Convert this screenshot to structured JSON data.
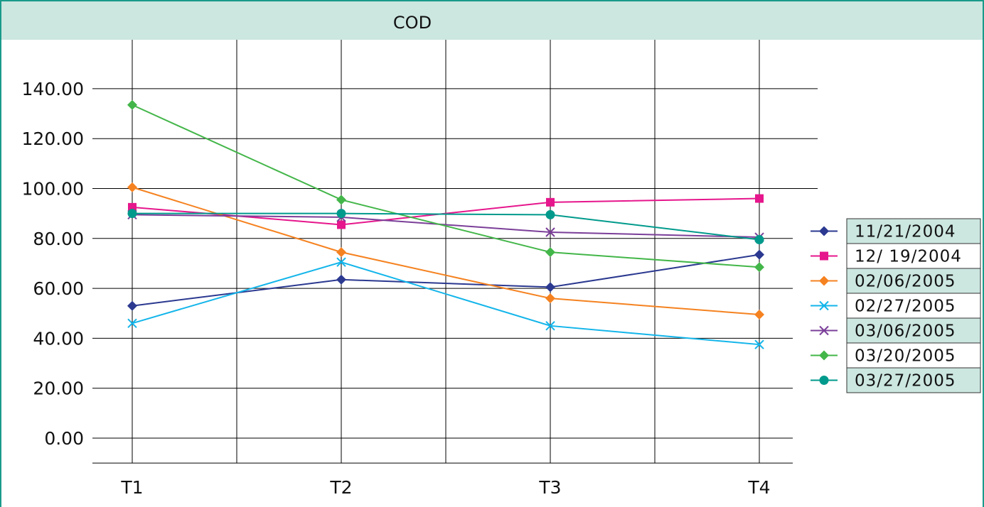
{
  "chart_data": {
    "type": "line",
    "title": "COD",
    "xlabel": "",
    "ylabel": "",
    "categories": [
      "T1",
      "T2",
      "T3",
      "T4"
    ],
    "ylim": [
      -10,
      160
    ],
    "y_ticks": [
      "0.00",
      "20.00",
      "40.00",
      "60.00",
      "80.00",
      "100.00",
      "120.00",
      "140.00"
    ],
    "grid": true,
    "legend_position": "right",
    "series": [
      {
        "name": "11/21/2004",
        "values": [
          53.0,
          63.5,
          60.5,
          73.5
        ],
        "color": "#2b3990",
        "marker": "diamond"
      },
      {
        "name": "12/ 19/2004",
        "values": [
          92.5,
          85.5,
          94.5,
          96.0
        ],
        "color": "#e6168c",
        "marker": "square"
      },
      {
        "name": "02/06/2005",
        "values": [
          100.5,
          74.5,
          56.0,
          49.5
        ],
        "color": "#f58220",
        "marker": "diamond"
      },
      {
        "name": "02/27/2005",
        "values": [
          46.0,
          70.5,
          45.0,
          37.5
        ],
        "color": "#13b5ea",
        "marker": "x"
      },
      {
        "name": "03/06/2005",
        "values": [
          89.5,
          88.5,
          82.5,
          80.5
        ],
        "color": "#7b3f99",
        "marker": "x"
      },
      {
        "name": "03/20/2005",
        "values": [
          133.5,
          95.5,
          74.5,
          68.5
        ],
        "color": "#43b649",
        "marker": "diamond"
      },
      {
        "name": "03/27/2005",
        "values": [
          90.0,
          90.0,
          89.5,
          79.5
        ],
        "color": "#009a8c",
        "marker": "circle"
      }
    ]
  },
  "colors": {
    "frame_border": "#1a9a8a",
    "title_bar": "#cce6e0",
    "legend_shaded": "#cce6e0",
    "grid": "#000000"
  }
}
